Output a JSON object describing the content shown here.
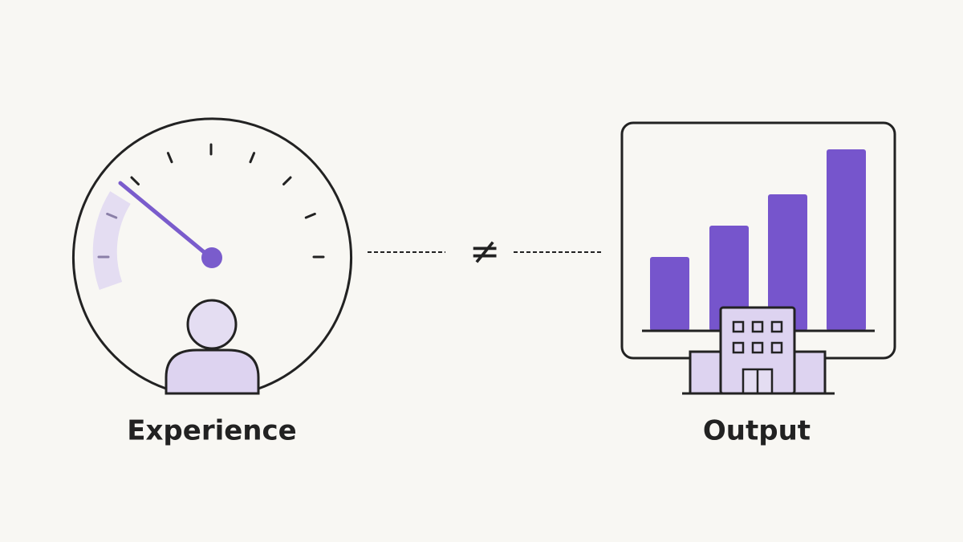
{
  "labels": {
    "left": "Experience",
    "right": "Output"
  },
  "symbol": "≠"
}
